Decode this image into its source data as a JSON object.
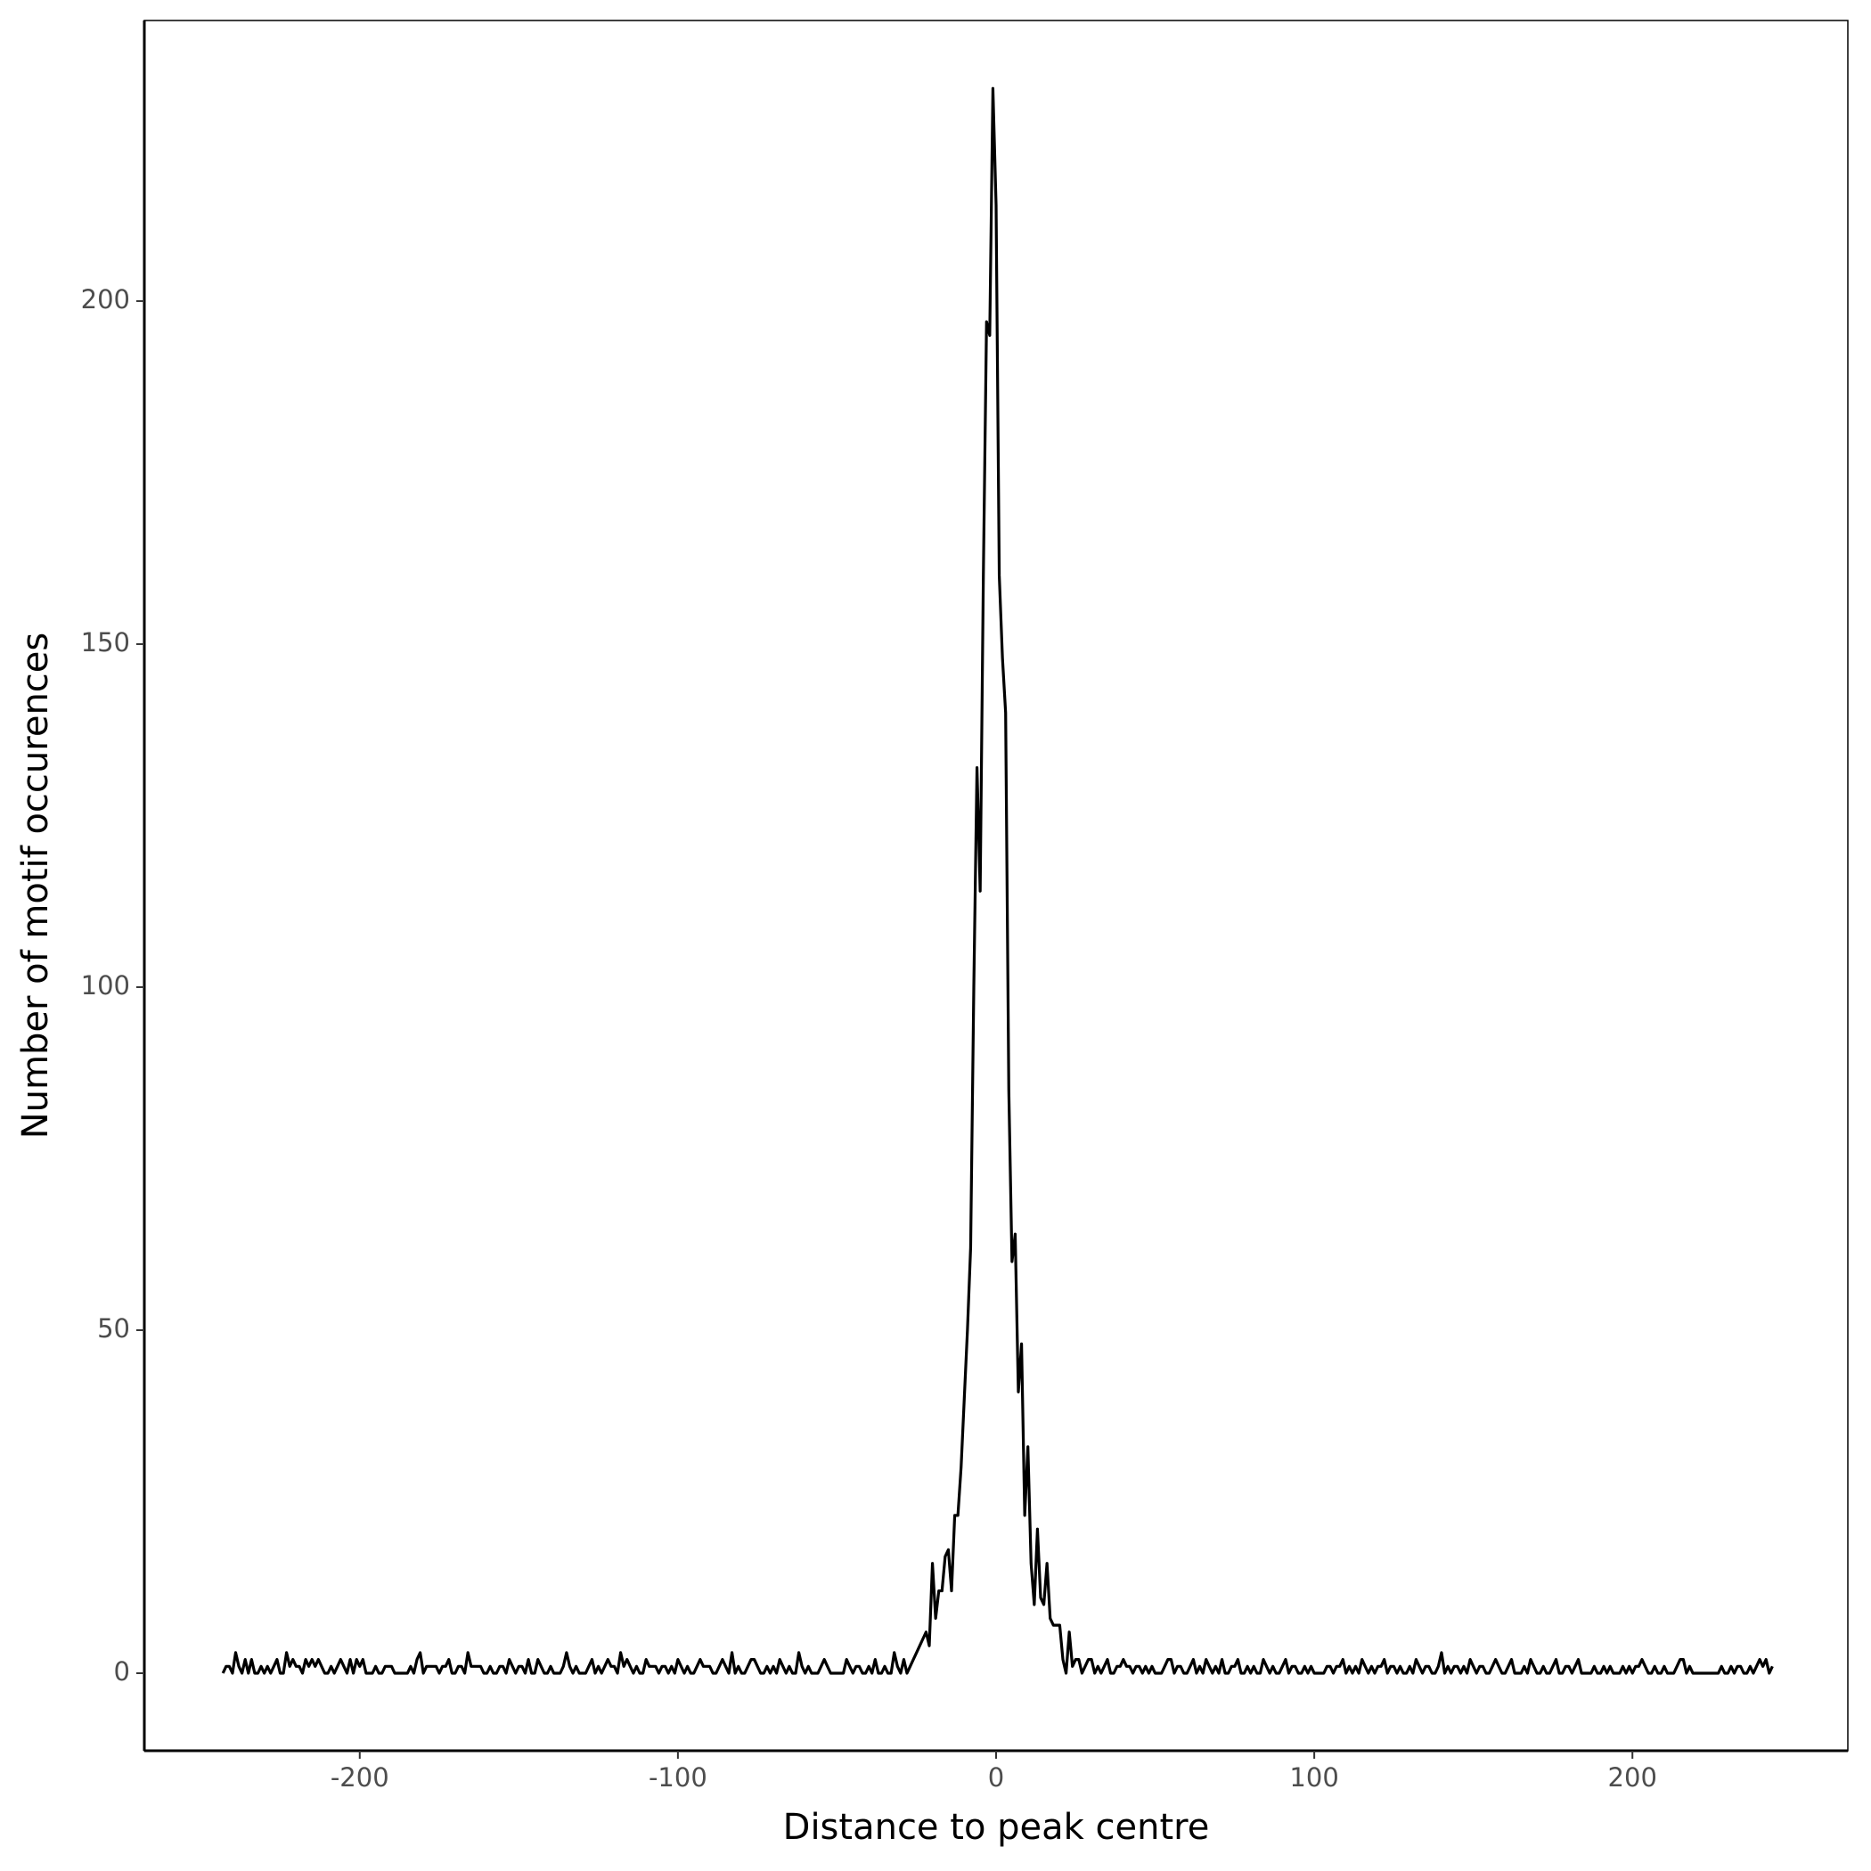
{
  "chart_data": {
    "type": "line",
    "x_label": "Distance to peak centre",
    "y_label": "Number of motif occurences",
    "color": "#000000",
    "xlim": [
      -267.7,
      267.7
    ],
    "ylim": [
      -11.3,
      240.9
    ],
    "xticks": [
      -200,
      -100,
      0,
      100,
      200
    ],
    "yticks": [
      0,
      50,
      100,
      150,
      200
    ],
    "x": [
      -243,
      -242,
      -241,
      -240,
      -239,
      -238,
      -237,
      -236,
      -235,
      -234,
      -233,
      -232,
      -231,
      -230,
      -229,
      -228,
      -227,
      -226,
      -225,
      -224,
      -223,
      -222,
      -221,
      -220,
      -219,
      -218,
      -217,
      -216,
      -215,
      -214,
      -213,
      -212,
      -211,
      -210,
      -209,
      -208,
      -207,
      -206,
      -205,
      -204,
      -203,
      -202,
      -201,
      -200,
      -199,
      -198,
      -197,
      -196,
      -195,
      -194,
      -193,
      -192,
      -191,
      -190,
      -189,
      -188,
      -187,
      -186,
      -185,
      -184,
      -183,
      -182,
      -181,
      -180,
      -179,
      -178,
      -177,
      -176,
      -175,
      -174,
      -173,
      -172,
      -171,
      -170,
      -169,
      -168,
      -167,
      -166,
      -165,
      -164,
      -163,
      -162,
      -161,
      -160,
      -159,
      -158,
      -157,
      -156,
      -155,
      -154,
      -153,
      -152,
      -151,
      -150,
      -149,
      -148,
      -147,
      -146,
      -145,
      -144,
      -143,
      -142,
      -141,
      -140,
      -139,
      -138,
      -137,
      -136,
      -135,
      -134,
      -133,
      -132,
      -131,
      -130,
      -129,
      -128,
      -127,
      -126,
      -125,
      -124,
      -123,
      -122,
      -121,
      -120,
      -119,
      -118,
      -117,
      -116,
      -115,
      -114,
      -113,
      -112,
      -111,
      -110,
      -109,
      -108,
      -107,
      -106,
      -105,
      -104,
      -103,
      -102,
      -101,
      -100,
      -99,
      -98,
      -97,
      -96,
      -95,
      -94,
      -93,
      -92,
      -91,
      -90,
      -89,
      -88,
      -87,
      -86,
      -85,
      -84,
      -83,
      -82,
      -81,
      -80,
      -79,
      -78,
      -77,
      -76,
      -75,
      -74,
      -73,
      -72,
      -71,
      -70,
      -69,
      -68,
      -67,
      -66,
      -65,
      -64,
      -63,
      -62,
      -61,
      -60,
      -59,
      -58,
      -57,
      -56,
      -55,
      -54,
      -53,
      -52,
      -51,
      -50,
      -49,
      -48,
      -47,
      -46,
      -45,
      -44,
      -43,
      -42,
      -41,
      -40,
      -39,
      -38,
      -37,
      -36,
      -35,
      -34,
      -33,
      -32,
      -31,
      -30,
      -29,
      -28,
      -27,
      -26,
      -25,
      -24,
      -23,
      -22,
      -21,
      -20,
      -19,
      -18,
      -17,
      -16,
      -15,
      -14,
      -13,
      -12,
      -11,
      -10,
      -9,
      -8,
      -7,
      -6,
      -5,
      -4,
      -3,
      -2,
      -1,
      0,
      1,
      2,
      3,
      4,
      5,
      6,
      7,
      8,
      9,
      10,
      11,
      12,
      13,
      14,
      15,
      16,
      17,
      18,
      19,
      20,
      21,
      22,
      23,
      24,
      25,
      26,
      27,
      28,
      29,
      30,
      31,
      32,
      33,
      34,
      35,
      36,
      37,
      38,
      39,
      40,
      41,
      42,
      43,
      44,
      45,
      46,
      47,
      48,
      49,
      50,
      51,
      52,
      53,
      54,
      55,
      56,
      57,
      58,
      59,
      60,
      61,
      62,
      63,
      64,
      65,
      66,
      67,
      68,
      69,
      70,
      71,
      72,
      73,
      74,
      75,
      76,
      77,
      78,
      79,
      80,
      81,
      82,
      83,
      84,
      85,
      86,
      87,
      88,
      89,
      90,
      91,
      92,
      93,
      94,
      95,
      96,
      97,
      98,
      99,
      100,
      101,
      102,
      103,
      104,
      105,
      106,
      107,
      108,
      109,
      110,
      111,
      112,
      113,
      114,
      115,
      116,
      117,
      118,
      119,
      120,
      121,
      122,
      123,
      124,
      125,
      126,
      127,
      128,
      129,
      130,
      131,
      132,
      133,
      134,
      135,
      136,
      137,
      138,
      139,
      140,
      141,
      142,
      143,
      144,
      145,
      146,
      147,
      148,
      149,
      150,
      151,
      152,
      153,
      154,
      155,
      156,
      157,
      158,
      159,
      160,
      161,
      162,
      163,
      164,
      165,
      166,
      167,
      168,
      169,
      170,
      171,
      172,
      173,
      174,
      175,
      176,
      177,
      178,
      179,
      180,
      181,
      182,
      183,
      184,
      185,
      186,
      187,
      188,
      189,
      190,
      191,
      192,
      193,
      194,
      195,
      196,
      197,
      198,
      199,
      200,
      201,
      202,
      203,
      204,
      205,
      206,
      207,
      208,
      209,
      210,
      211,
      212,
      213,
      214,
      215,
      216,
      217,
      218,
      219,
      220,
      221,
      222,
      223,
      224,
      225,
      226,
      227,
      228,
      229,
      230,
      231,
      232,
      233,
      234,
      235,
      236,
      237,
      238,
      239,
      240,
      241,
      242,
      243,
      244
    ],
    "values": [
      0,
      1,
      1,
      0,
      3,
      1,
      0,
      2,
      0,
      2,
      0,
      0,
      1,
      0,
      1,
      0,
      1,
      2,
      0,
      0,
      3,
      1,
      2,
      1,
      1,
      0,
      2,
      1,
      2,
      1,
      2,
      1,
      0,
      0,
      1,
      0,
      1,
      2,
      1,
      0,
      2,
      0,
      2,
      1,
      2,
      0,
      0,
      0,
      1,
      0,
      0,
      1,
      1,
      1,
      0,
      0,
      0,
      0,
      0,
      1,
      0,
      2,
      3,
      0,
      1,
      1,
      1,
      1,
      0,
      1,
      1,
      2,
      0,
      0,
      1,
      1,
      0,
      3,
      1,
      1,
      1,
      1,
      0,
      0,
      1,
      0,
      0,
      1,
      1,
      0,
      2,
      1,
      0,
      1,
      1,
      0,
      2,
      0,
      0,
      2,
      1,
      0,
      0,
      1,
      0,
      0,
      0,
      1,
      3,
      1,
      0,
      1,
      0,
      0,
      0,
      1,
      2,
      0,
      1,
      0,
      1,
      2,
      1,
      1,
      0,
      3,
      1,
      2,
      1,
      0,
      1,
      0,
      0,
      2,
      1,
      1,
      1,
      0,
      1,
      1,
      0,
      1,
      0,
      2,
      1,
      0,
      1,
      0,
      0,
      1,
      2,
      1,
      1,
      1,
      0,
      0,
      1,
      2,
      1,
      0,
      3,
      0,
      1,
      0,
      0,
      1,
      2,
      2,
      1,
      0,
      0,
      1,
      0,
      1,
      0,
      2,
      1,
      0,
      1,
      0,
      0,
      3,
      1,
      0,
      1,
      0,
      0,
      0,
      1,
      2,
      1,
      0,
      0,
      0,
      0,
      0,
      2,
      1,
      0,
      1,
      1,
      0,
      0,
      1,
      0,
      2,
      0,
      0,
      1,
      0,
      0,
      3,
      1,
      0,
      2,
      0,
      1,
      2,
      3,
      4,
      5,
      6,
      4,
      16,
      8,
      12,
      12,
      17,
      18,
      12,
      23,
      23,
      30,
      40,
      50,
      62,
      100,
      132,
      114,
      160,
      197,
      195,
      231,
      214,
      160,
      148,
      140,
      85,
      60,
      64,
      41,
      48,
      23,
      33,
      16,
      10,
      21,
      11,
      10,
      16,
      8,
      7,
      7,
      7,
      2,
      0,
      6,
      1,
      2,
      2,
      0,
      1,
      2,
      2,
      0,
      1,
      0,
      1,
      2,
      0,
      0,
      1,
      1,
      2,
      1,
      1,
      0,
      1,
      1,
      0,
      1,
      0,
      1,
      0,
      0,
      0,
      1,
      2,
      2,
      0,
      1,
      1,
      0,
      0,
      1,
      2,
      0,
      1,
      0,
      2,
      1,
      0,
      1,
      0,
      2,
      0,
      0,
      1,
      1,
      2,
      0,
      0,
      1,
      0,
      1,
      0,
      0,
      2,
      1,
      0,
      1,
      0,
      0,
      1,
      2,
      0,
      1,
      1,
      0,
      0,
      1,
      0,
      1,
      0,
      0,
      0,
      0,
      1,
      1,
      0,
      1,
      1,
      2,
      0,
      1,
      0,
      1,
      0,
      2,
      1,
      0,
      1,
      0,
      1,
      1,
      2,
      0,
      1,
      1,
      0,
      1,
      0,
      0,
      1,
      0,
      2,
      1,
      0,
      1,
      1,
      0,
      0,
      1,
      3,
      0,
      1,
      0,
      1,
      1,
      0,
      1,
      0,
      2,
      1,
      0,
      1,
      1,
      0,
      0,
      1,
      2,
      1,
      0,
      0,
      1,
      2,
      0,
      0,
      0,
      1,
      0,
      2,
      1,
      0,
      0,
      1,
      0,
      0,
      1,
      2,
      0,
      0,
      1,
      1,
      0,
      1,
      2,
      0,
      0,
      0,
      0,
      1,
      0,
      0,
      1,
      0,
      1,
      0,
      0,
      0,
      1,
      0,
      1,
      0,
      1,
      1,
      2,
      1,
      0,
      0,
      1,
      0,
      0,
      1,
      0,
      0,
      0,
      1,
      2,
      2,
      0,
      1,
      0,
      0,
      0,
      0,
      0,
      0,
      0,
      0,
      0,
      1,
      0,
      0,
      1,
      0,
      1,
      1,
      0,
      0,
      1,
      0,
      1,
      2,
      1,
      2,
      0,
      1
    ]
  }
}
